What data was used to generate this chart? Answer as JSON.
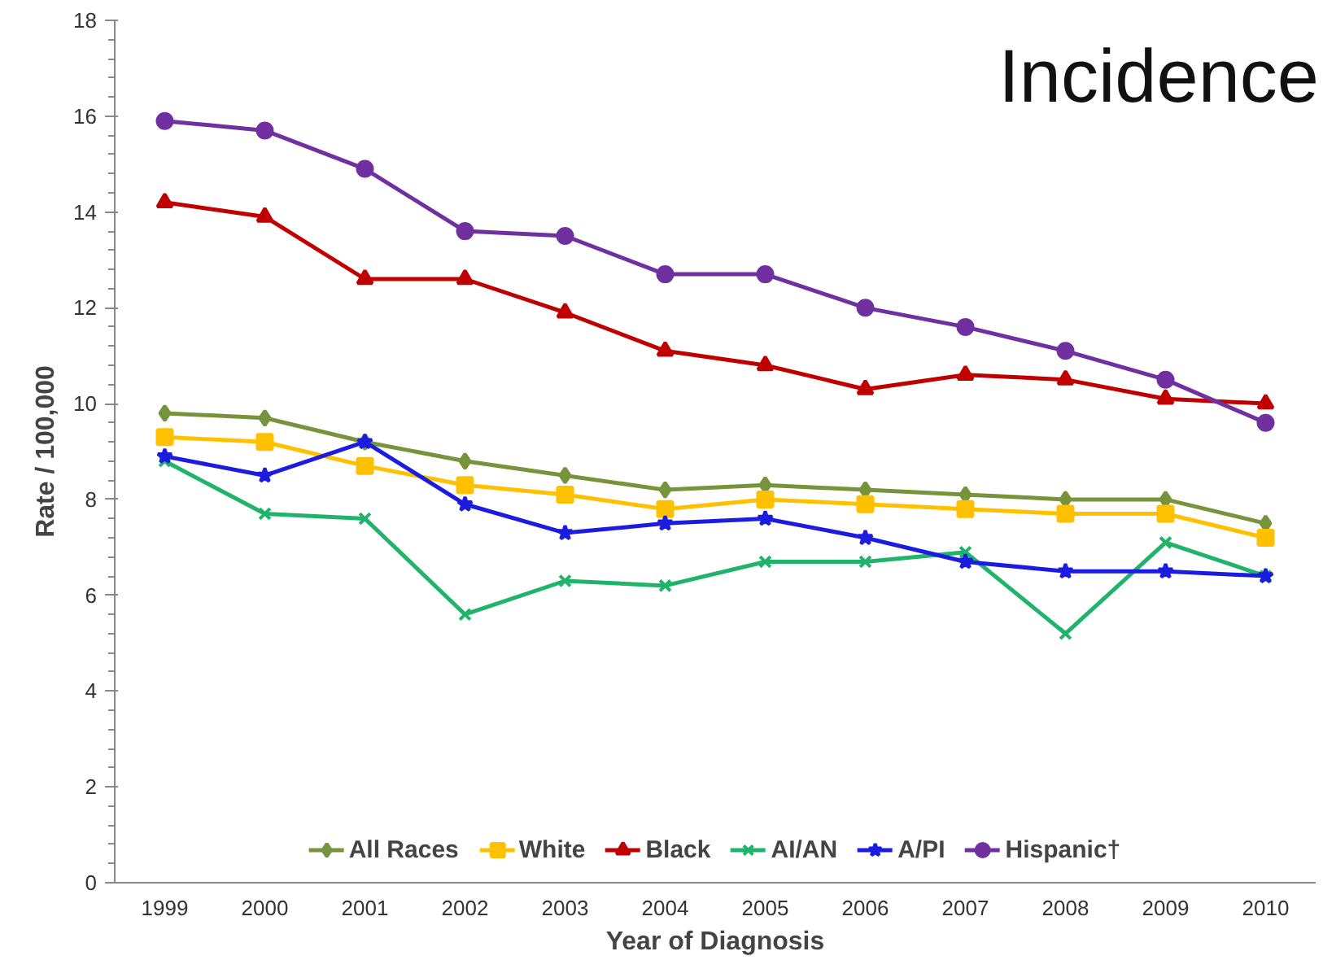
{
  "chart_data": {
    "type": "line",
    "title": "Incidence",
    "xlabel": "Year of Diagnosis",
    "ylabel": "Rate / 100,000",
    "categories": [
      "1999",
      "2000",
      "2001",
      "2002",
      "2003",
      "2004",
      "2005",
      "2006",
      "2007",
      "2008",
      "2009",
      "2010"
    ],
    "ylim": [
      0,
      18
    ],
    "yticks": [
      0,
      2,
      4,
      6,
      8,
      10,
      12,
      14,
      16,
      18
    ],
    "grid": false,
    "legend": "bottom",
    "line_style": "solid",
    "series": [
      {
        "name": "All Races",
        "color": "#77933c",
        "marker": "diamond",
        "values": [
          9.8,
          9.7,
          9.2,
          8.8,
          8.5,
          8.2,
          8.3,
          8.2,
          8.1,
          8.0,
          8.0,
          7.5
        ]
      },
      {
        "name": "White",
        "color": "#ffc000",
        "marker": "square",
        "values": [
          9.3,
          9.2,
          8.7,
          8.3,
          8.1,
          7.8,
          8.0,
          7.9,
          7.8,
          7.7,
          7.7,
          7.2
        ]
      },
      {
        "name": "Black",
        "color": "#c00000",
        "marker": "triangle",
        "values": [
          14.2,
          13.9,
          12.6,
          12.6,
          11.9,
          11.1,
          10.8,
          10.3,
          10.6,
          10.5,
          10.1,
          10.0
        ]
      },
      {
        "name": "AI/AN",
        "color": "#1fb36b",
        "marker": "cross",
        "values": [
          8.8,
          7.7,
          7.6,
          5.6,
          6.3,
          6.2,
          6.7,
          6.7,
          6.9,
          5.2,
          7.1,
          6.4
        ]
      },
      {
        "name": "A/PI",
        "color": "#1c1ce0",
        "marker": "star",
        "values": [
          8.9,
          8.5,
          9.2,
          7.9,
          7.3,
          7.5,
          7.6,
          7.2,
          6.7,
          6.5,
          6.5,
          6.4
        ]
      },
      {
        "name": "Hispanic†",
        "color": "#7030a0",
        "marker": "circle",
        "values": [
          15.9,
          15.7,
          14.9,
          13.6,
          13.5,
          12.7,
          12.7,
          12.0,
          11.6,
          11.1,
          10.5,
          9.6
        ]
      }
    ]
  }
}
